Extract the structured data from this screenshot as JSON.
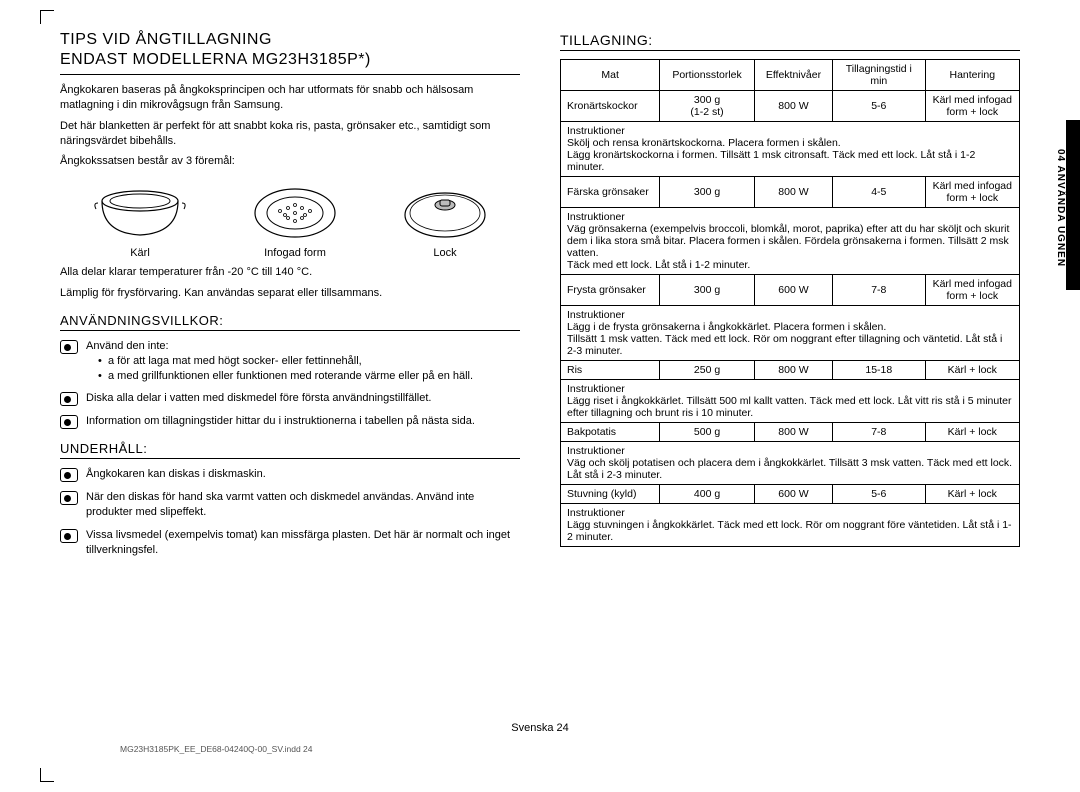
{
  "title_line1": "TIPS VID ÅNGTILLAGNING",
  "title_line2": "ENDAST MODELLERNA MG23H3185P*)",
  "intro1": "Ångkokaren baseras på ångkoksprincipen och har utformats för snabb och hälsosam matlagning i din mikrovågsugn från Samsung.",
  "intro2": "Det här blanketten är perfekt för att snabbt koka ris, pasta, grönsaker etc., samtidigt som näringsvärdet bibehålls.",
  "intro3": "Ångkokssatsen består av 3 föremål:",
  "parts": {
    "a": "Kärl",
    "b": "Infogad form",
    "c": "Lock"
  },
  "temp_note": "Alla delar klarar temperaturer från -20 °C till 140 °C.",
  "storage_note": "Lämplig för frysförvaring. Kan användas separat eller tillsammans.",
  "sec1_title": "ANVÄNDNINGSVILLKOR:",
  "sec1_item1_lead": "Använd den inte:",
  "sec1_item1_a": "a för att laga mat med högt socker- eller fettinnehåll,",
  "sec1_item1_b": "a med grillfunktionen eller funktionen med roterande värme eller på en häll.",
  "sec1_item2": "Diska alla delar i vatten med diskmedel före första användningstillfället.",
  "sec1_item3": "Information om tillagningstider hittar du i instruktionerna i tabellen på nästa sida.",
  "sec2_title": "UNDERHÅLL:",
  "sec2_item1": "Ångkokaren kan diskas i diskmaskin.",
  "sec2_item2": "När den diskas för hand ska varmt vatten och diskmedel användas. Använd inte produkter med slipeffekt.",
  "sec2_item3": "Vissa livsmedel (exempelvis tomat) kan missfärga plasten. Det här är normalt och inget tillverkningsfel.",
  "right_title": "TILLAGNING:",
  "table": {
    "headers": [
      "Mat",
      "Portionsstorlek",
      "Effektnivåer",
      "Tillagningstid i min",
      "Hantering"
    ],
    "rows": [
      {
        "food": "Kronärtskockor",
        "portion": "300 g\n(1-2 st)",
        "power": "800 W",
        "time": "5-6",
        "handling": "Kärl med infogad form + lock",
        "instr": "Instruktioner\nSkölj och rensa kronärtskockorna. Placera formen i skålen.\nLägg kronärtskockorna i formen. Tillsätt 1 msk citronsaft. Täck med ett lock. Låt stå i 1-2 minuter."
      },
      {
        "food": "Färska grönsaker",
        "portion": "300 g",
        "power": "800 W",
        "time": "4-5",
        "handling": "Kärl med infogad form + lock",
        "instr": "Instruktioner\nVäg grönsakerna (exempelvis broccoli, blomkål, morot, paprika) efter att du har sköljt och skurit dem i lika stora små bitar. Placera formen i skålen. Fördela grönsakerna i formen. Tillsätt 2 msk vatten.\nTäck med ett lock. Låt stå i 1-2 minuter."
      },
      {
        "food": "Frysta grönsaker",
        "portion": "300 g",
        "power": "600 W",
        "time": "7-8",
        "handling": "Kärl med infogad form + lock",
        "instr": "Instruktioner\nLägg i de frysta grönsakerna i ångkokkärlet. Placera formen i skålen.\nTillsätt 1 msk vatten. Täck med ett lock. Rör om noggrant efter tillagning och väntetid. Låt stå i 2-3 minuter."
      },
      {
        "food": "Ris",
        "portion": "250 g",
        "power": "800 W",
        "time": "15-18",
        "handling": "Kärl + lock",
        "instr": "Instruktioner\nLägg riset i ångkokkärlet. Tillsätt 500 ml kallt vatten. Täck med ett lock. Låt vitt ris stå i 5 minuter efter tillagning och brunt ris i 10 minuter."
      },
      {
        "food": "Bakpotatis",
        "portion": "500 g",
        "power": "800 W",
        "time": "7-8",
        "handling": "Kärl + lock",
        "instr": "Instruktioner\nVäg och skölj potatisen och placera dem i ångkokkärlet. Tillsätt 3 msk vatten. Täck med ett lock. Låt stå i 2-3 minuter."
      },
      {
        "food": "Stuvning (kyld)",
        "portion": "400 g",
        "power": "600 W",
        "time": "5-6",
        "handling": "Kärl + lock",
        "instr": "Instruktioner\nLägg stuvningen i ångkokkärlet. Täck med ett lock. Rör om noggrant före väntetiden. Låt stå i 1-2 minuter."
      }
    ]
  },
  "side_tab": "04  ANVÄNDA UGNEN",
  "footer": "Svenska   24",
  "print_line": "MG23H3185PK_EE_DE68-04240Q-00_SV.indd   24"
}
